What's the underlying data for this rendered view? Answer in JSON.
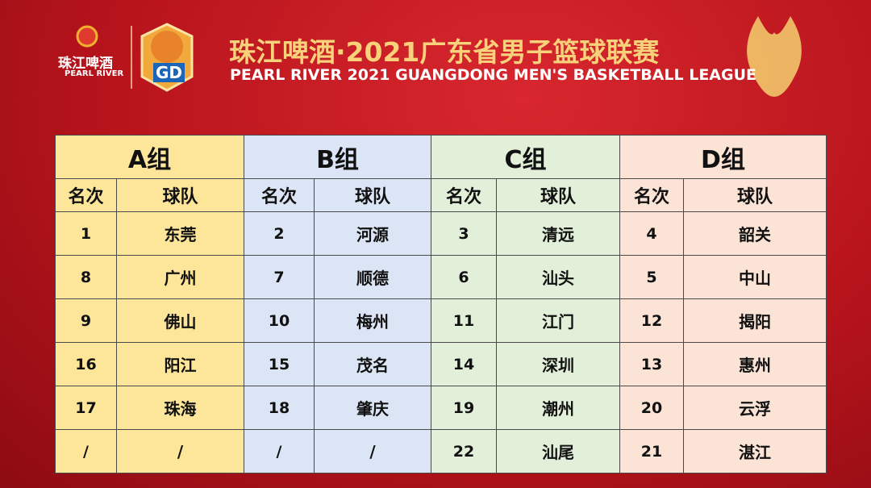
{
  "header": {
    "brand": "珠江啤酒",
    "brand_en": "PEARL RIVER",
    "badge": "GD",
    "title": "珠江啤酒·2021广东省男子篮球联赛",
    "subtitle": "PEARL RIVER 2021 GUANGDONG MEN'S BASKETBALL LEAGUE"
  },
  "table": {
    "groups": [
      {
        "name": "A组",
        "rank_header": "名次",
        "team_header": "球队",
        "rows": [
          [
            "1",
            "东莞"
          ],
          [
            "8",
            "广州"
          ],
          [
            "9",
            "佛山"
          ],
          [
            "16",
            "阳江"
          ],
          [
            "17",
            "珠海"
          ],
          [
            "/",
            "/"
          ]
        ]
      },
      {
        "name": "B组",
        "rank_header": "名次",
        "team_header": "球队",
        "rows": [
          [
            "2",
            "河源"
          ],
          [
            "7",
            "顺德"
          ],
          [
            "10",
            "梅州"
          ],
          [
            "15",
            "茂名"
          ],
          [
            "18",
            "肇庆"
          ],
          [
            "/",
            "/"
          ]
        ]
      },
      {
        "name": "C组",
        "rank_header": "名次",
        "team_header": "球队",
        "rows": [
          [
            "3",
            "清远"
          ],
          [
            "6",
            "汕头"
          ],
          [
            "11",
            "江门"
          ],
          [
            "14",
            "深圳"
          ],
          [
            "19",
            "潮州"
          ],
          [
            "22",
            "汕尾"
          ]
        ]
      },
      {
        "name": "D组",
        "rank_header": "名次",
        "team_header": "球队",
        "rows": [
          [
            "4",
            "韶关"
          ],
          [
            "5",
            "中山"
          ],
          [
            "12",
            "揭阳"
          ],
          [
            "13",
            "惠州"
          ],
          [
            "20",
            "云浮"
          ],
          [
            "21",
            "湛江"
          ]
        ]
      }
    ]
  }
}
